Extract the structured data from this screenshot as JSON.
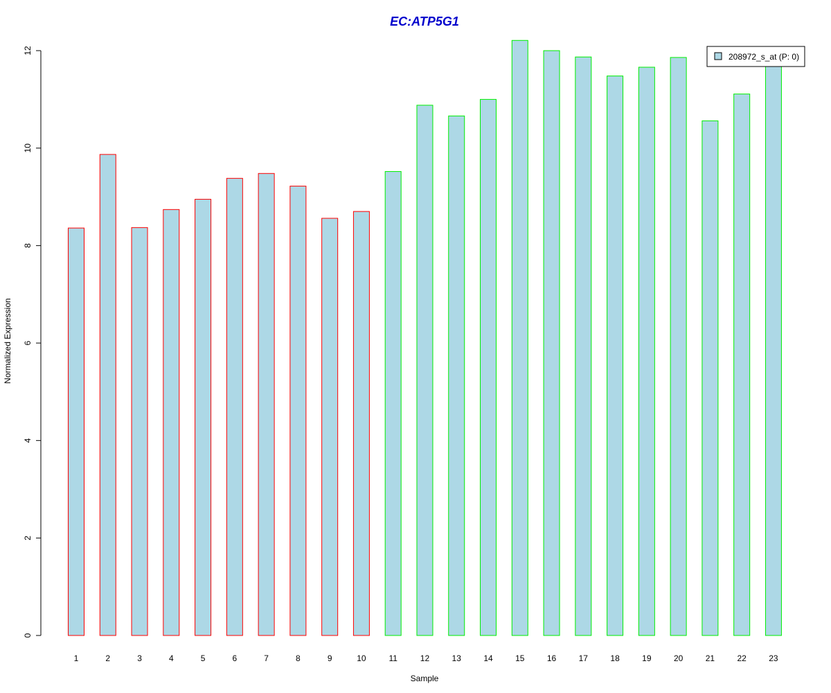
{
  "chart_data": {
    "type": "bar",
    "title": "EC:ATP5G1",
    "xlabel": "Sample",
    "ylabel": "Normalized Expression",
    "categories": [
      "1",
      "2",
      "3",
      "4",
      "5",
      "6",
      "7",
      "8",
      "9",
      "10",
      "11",
      "12",
      "13",
      "14",
      "15",
      "16",
      "17",
      "18",
      "19",
      "20",
      "21",
      "22",
      "23"
    ],
    "series": [
      {
        "name": "208972_s_at (P: 0)",
        "values": [
          8.36,
          9.87,
          8.37,
          8.74,
          8.95,
          9.38,
          9.48,
          9.22,
          8.56,
          8.7,
          9.52,
          10.88,
          10.66,
          11.0,
          12.21,
          12.0,
          11.87,
          11.48,
          11.66,
          11.86,
          10.56,
          11.11,
          11.72
        ]
      }
    ],
    "group_border_colors": [
      "#ff0000",
      "#ff0000",
      "#ff0000",
      "#ff0000",
      "#ff0000",
      "#ff0000",
      "#ff0000",
      "#ff0000",
      "#ff0000",
      "#ff0000",
      "#00ee00",
      "#00ee00",
      "#00ee00",
      "#00ee00",
      "#00ee00",
      "#00ee00",
      "#00ee00",
      "#00ee00",
      "#00ee00",
      "#00ee00",
      "#00ee00",
      "#00ee00",
      "#00ee00"
    ],
    "yticks": [
      "0",
      "2",
      "4",
      "6",
      "8",
      "10",
      "12"
    ],
    "ylim": [
      0,
      12.2
    ],
    "bar_fill_color": "#add8e6",
    "title_color": "#0000cc",
    "legend_position": "top-right",
    "grid": false
  }
}
